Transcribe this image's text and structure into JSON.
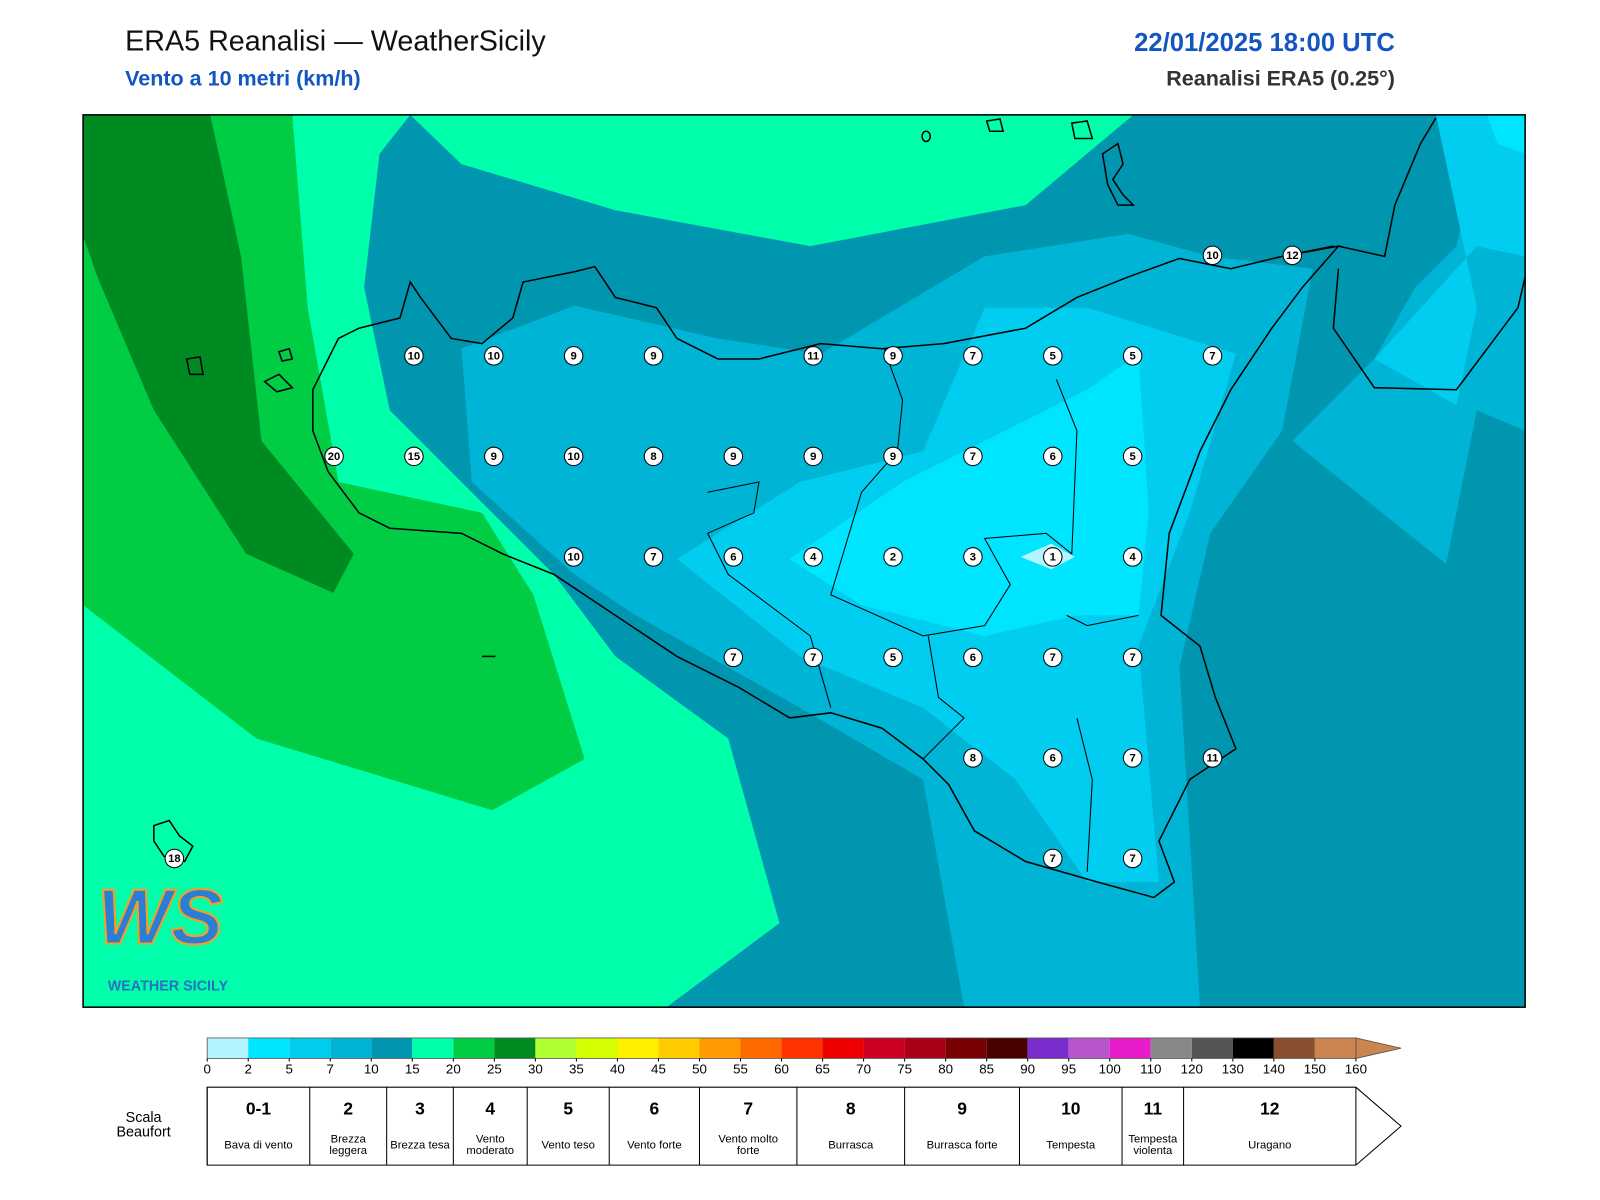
{
  "header": {
    "title": "ERA5 Reanalisi — WeatherSicily",
    "subtitle": "Vento a 10 metri (km/h)",
    "date": "22/01/2025 18:00 UTC",
    "source": "Reanalisi ERA5 (0.25°)"
  },
  "wind_grid": [
    [
      null,
      null,
      null,
      null,
      null,
      null,
      null,
      null,
      null,
      null,
      null,
      null,
      null,
      10,
      12
    ],
    [
      null,
      null,
      null,
      10,
      10,
      9,
      9,
      null,
      11,
      9,
      7,
      5,
      5,
      7,
      null
    ],
    [
      null,
      null,
      20,
      15,
      9,
      10,
      8,
      9,
      9,
      9,
      7,
      6,
      5,
      null,
      null
    ],
    [
      null,
      null,
      null,
      null,
      null,
      10,
      7,
      6,
      4,
      2,
      3,
      1,
      4,
      null,
      null
    ],
    [
      null,
      null,
      null,
      null,
      null,
      null,
      null,
      7,
      7,
      5,
      6,
      7,
      7,
      null,
      null
    ],
    [
      null,
      null,
      null,
      null,
      null,
      null,
      null,
      null,
      null,
      null,
      8,
      6,
      7,
      11,
      null
    ],
    [
      18,
      null,
      null,
      null,
      null,
      null,
      null,
      null,
      null,
      null,
      null,
      7,
      7,
      null,
      null
    ]
  ],
  "logo": {
    "text": "WS",
    "caption": "WEATHER SICILY"
  },
  "colorbar": {
    "ticks": [
      0,
      2,
      5,
      7,
      10,
      15,
      20,
      25,
      30,
      35,
      40,
      45,
      50,
      55,
      60,
      65,
      70,
      75,
      80,
      85,
      90,
      95,
      100,
      110,
      120,
      130,
      140,
      150,
      160
    ],
    "colors": [
      "#b3f5ff",
      "#00e5ff",
      "#00cdf0",
      "#00b4d6",
      "#0096b0",
      "#00ffaa",
      "#00cc44",
      "#008a22",
      "#b0ff33",
      "#d4ff00",
      "#fff000",
      "#ffcc00",
      "#ff9a00",
      "#ff6a00",
      "#ff3300",
      "#ee0000",
      "#cc0022",
      "#a80018",
      "#770000",
      "#4a0000",
      "#7a2ccc",
      "#b855cc",
      "#e81ccc",
      "#888888",
      "#555555",
      "#000000",
      "#88502e",
      "#cd8550"
    ]
  },
  "beaufort": {
    "title": "Scala Beaufort",
    "levels": [
      {
        "force": "0-1",
        "label": "Bava di vento"
      },
      {
        "force": 2,
        "label": "Brezza leggera"
      },
      {
        "force": 3,
        "label": "Brezza tesa"
      },
      {
        "force": 4,
        "label": "Vento moderato"
      },
      {
        "force": 5,
        "label": "Vento teso"
      },
      {
        "force": 6,
        "label": "Vento forte"
      },
      {
        "force": 7,
        "label": "Vento molto forte"
      },
      {
        "force": 8,
        "label": "Burrasca"
      },
      {
        "force": 9,
        "label": "Burrasca forte"
      },
      {
        "force": 10,
        "label": "Tempesta"
      },
      {
        "force": 11,
        "label": "Tempesta violenta"
      },
      {
        "force": 12,
        "label": "Uragano"
      }
    ]
  }
}
